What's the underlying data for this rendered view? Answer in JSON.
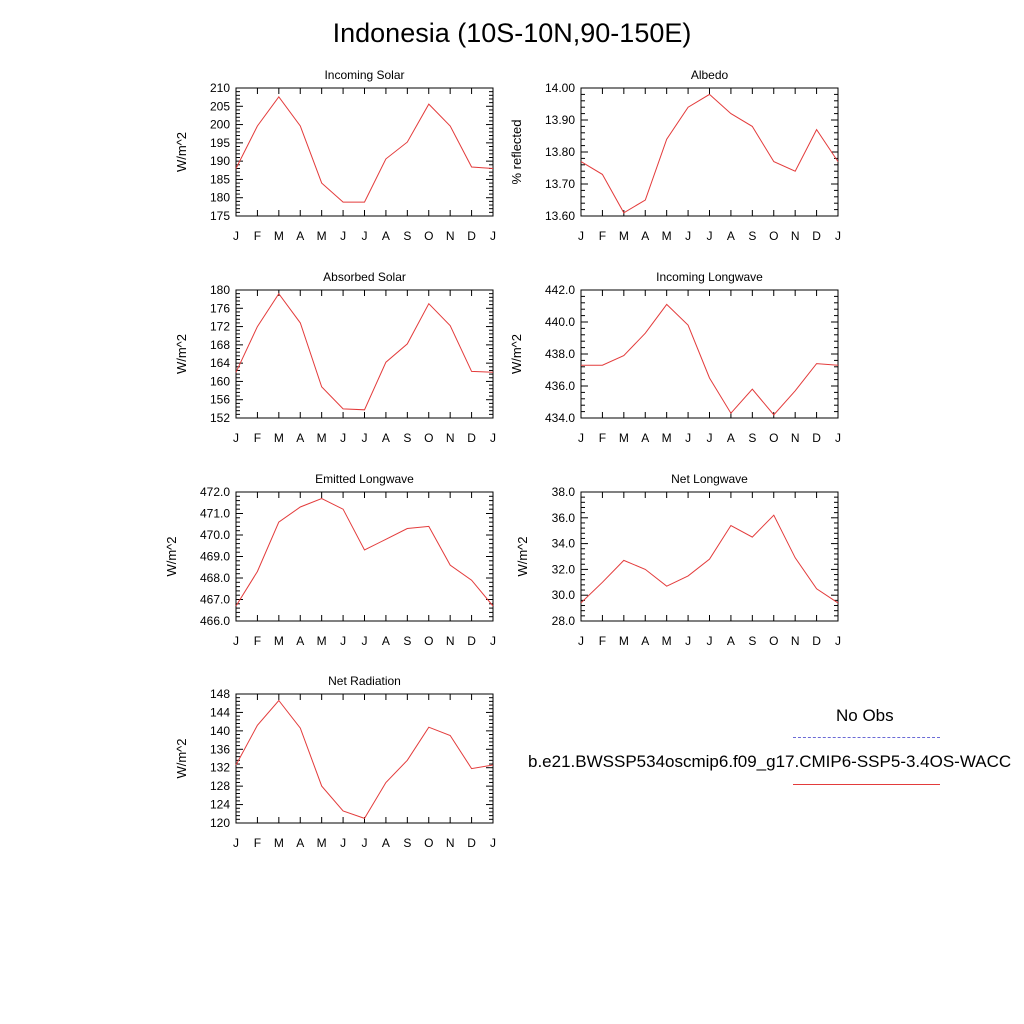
{
  "title": "Indonesia (10S-10N,90-150E)",
  "legend": {
    "obs_label": "No Obs",
    "model_label": "b.e21.BWSSP534oscmip6.f09_g17.CMIP6-SSP5-3.4OS-WACC",
    "obs_color": "#6b6bd6",
    "model_color": "#e33b3b"
  },
  "chart_data": [
    {
      "type": "line",
      "title": "Incoming Solar",
      "ylabel": "W/m^2",
      "xlabel": "",
      "categories": [
        "J",
        "F",
        "M",
        "A",
        "M",
        "J",
        "J",
        "A",
        "S",
        "O",
        "N",
        "D",
        "J"
      ],
      "ylim": [
        175,
        210
      ],
      "yticks": [
        "175",
        "180",
        "185",
        "190",
        "195",
        "200",
        "205",
        "210"
      ],
      "series": [
        {
          "name": "model",
          "color": "#e33b3b",
          "values": [
            188.0,
            199.6,
            207.6,
            199.6,
            184.0,
            178.8,
            178.8,
            190.6,
            195.2,
            205.6,
            199.6,
            188.4,
            188.0
          ]
        }
      ]
    },
    {
      "type": "line",
      "title": "Albedo",
      "ylabel": "% reflected",
      "xlabel": "",
      "categories": [
        "J",
        "F",
        "M",
        "A",
        "M",
        "J",
        "J",
        "A",
        "S",
        "O",
        "N",
        "D",
        "J"
      ],
      "ylim": [
        13.6,
        14.0
      ],
      "yticks": [
        "13.60",
        "13.70",
        "13.80",
        "13.90",
        "14.00"
      ],
      "series": [
        {
          "name": "model",
          "color": "#e33b3b",
          "values": [
            13.77,
            13.73,
            13.61,
            13.65,
            13.84,
            13.94,
            13.98,
            13.92,
            13.88,
            13.77,
            13.74,
            13.87,
            13.77
          ]
        }
      ]
    },
    {
      "type": "line",
      "title": "Absorbed Solar",
      "ylabel": "W/m^2",
      "xlabel": "",
      "categories": [
        "J",
        "F",
        "M",
        "A",
        "M",
        "J",
        "J",
        "A",
        "S",
        "O",
        "N",
        "D",
        "J"
      ],
      "ylim": [
        152,
        180
      ],
      "yticks": [
        "152",
        "156",
        "160",
        "164",
        "168",
        "172",
        "176",
        "180"
      ],
      "series": [
        {
          "name": "model",
          "color": "#e33b3b",
          "values": [
            162.0,
            172.0,
            179.2,
            172.8,
            158.8,
            154.0,
            153.8,
            164.2,
            168.2,
            177.0,
            172.2,
            162.2,
            162.0
          ]
        }
      ]
    },
    {
      "type": "line",
      "title": "Incoming Longwave",
      "ylabel": "W/m^2",
      "xlabel": "",
      "categories": [
        "J",
        "F",
        "M",
        "A",
        "M",
        "J",
        "J",
        "A",
        "S",
        "O",
        "N",
        "D",
        "J"
      ],
      "ylim": [
        434.0,
        442.0
      ],
      "yticks": [
        "434.0",
        "436.0",
        "438.0",
        "440.0",
        "442.0"
      ],
      "series": [
        {
          "name": "model",
          "color": "#e33b3b",
          "values": [
            437.3,
            437.3,
            437.9,
            439.3,
            441.1,
            439.8,
            436.5,
            434.3,
            435.8,
            434.2,
            435.7,
            437.4,
            437.3
          ]
        }
      ]
    },
    {
      "type": "line",
      "title": "Emitted Longwave",
      "ylabel": "W/m^2",
      "xlabel": "",
      "categories": [
        "J",
        "F",
        "M",
        "A",
        "M",
        "J",
        "J",
        "A",
        "S",
        "O",
        "N",
        "D",
        "J"
      ],
      "ylim": [
        466.0,
        472.0
      ],
      "yticks": [
        "466.0",
        "467.0",
        "468.0",
        "469.0",
        "470.0",
        "471.0",
        "472.0"
      ],
      "series": [
        {
          "name": "model",
          "color": "#e33b3b",
          "values": [
            466.7,
            468.3,
            470.6,
            471.3,
            471.7,
            471.2,
            469.3,
            469.8,
            470.3,
            470.4,
            468.6,
            467.9,
            466.7
          ]
        }
      ]
    },
    {
      "type": "line",
      "title": "Net Longwave",
      "ylabel": "W/m^2",
      "xlabel": "",
      "categories": [
        "J",
        "F",
        "M",
        "A",
        "M",
        "J",
        "J",
        "A",
        "S",
        "O",
        "N",
        "D",
        "J"
      ],
      "ylim": [
        28.0,
        38.0
      ],
      "yticks": [
        "28.0",
        "30.0",
        "32.0",
        "34.0",
        "36.0",
        "38.0"
      ],
      "series": [
        {
          "name": "model",
          "color": "#e33b3b",
          "values": [
            29.4,
            31.0,
            32.7,
            32.0,
            30.7,
            31.5,
            32.8,
            35.4,
            34.5,
            36.2,
            32.9,
            30.5,
            29.4
          ]
        }
      ]
    },
    {
      "type": "line",
      "title": "Net Radiation",
      "ylabel": "W/m^2",
      "xlabel": "",
      "categories": [
        "J",
        "F",
        "M",
        "A",
        "M",
        "J",
        "J",
        "A",
        "S",
        "O",
        "N",
        "D",
        "J"
      ],
      "ylim": [
        120,
        148
      ],
      "yticks": [
        "120",
        "124",
        "128",
        "132",
        "136",
        "140",
        "144",
        "148"
      ],
      "series": [
        {
          "name": "model",
          "color": "#e33b3b",
          "values": [
            132.6,
            141.2,
            146.6,
            140.6,
            128.0,
            122.6,
            121.0,
            128.8,
            133.6,
            140.8,
            139.0,
            131.8,
            132.6
          ]
        }
      ]
    }
  ]
}
